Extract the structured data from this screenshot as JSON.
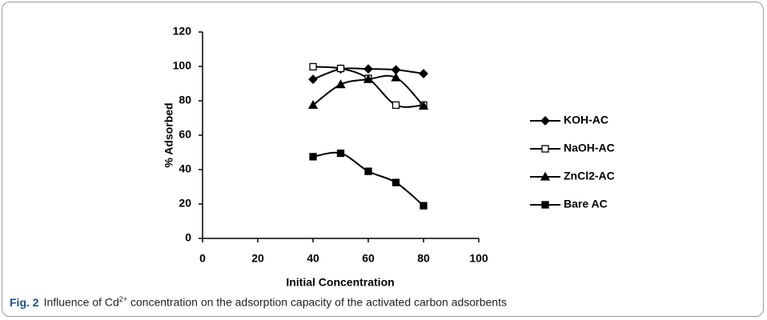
{
  "chart_data": {
    "type": "line",
    "x_label": "Initial Concentration",
    "y_label": "% Adsorbed",
    "x": [
      40,
      50,
      60,
      70,
      80
    ],
    "xlim": [
      0,
      100
    ],
    "xticks": [
      0,
      20,
      40,
      60,
      80,
      100
    ],
    "ylim": [
      0,
      120
    ],
    "yticks": [
      0,
      20,
      40,
      60,
      80,
      100,
      120
    ],
    "grid": false,
    "legend": "right",
    "smooth": true,
    "series": [
      {
        "name": "KOH-AC",
        "color": "#000000",
        "marker": "diamond",
        "values": [
          92.5,
          98.5,
          98.5,
          98,
          95.8
        ]
      },
      {
        "name": "NaOH-AC",
        "color": "#000000",
        "marker": "open-square",
        "values": [
          99.8,
          98.8,
          93,
          77.5,
          77.5
        ]
      },
      {
        "name": "ZnCl2-AC",
        "color": "#000000",
        "marker": "triangle",
        "values": [
          77.5,
          89.5,
          92.5,
          93.5,
          77
        ]
      },
      {
        "name": "Bare AC",
        "color": "#000000",
        "marker": "square",
        "values": [
          47.5,
          49.5,
          39,
          32.5,
          19
        ]
      }
    ]
  },
  "caption": {
    "label": "Fig. 2",
    "text_before": "Influence of Cd",
    "superscript": "2+",
    "text_after": "concentration on the adsorption capacity of the activated carbon adsorbents"
  }
}
